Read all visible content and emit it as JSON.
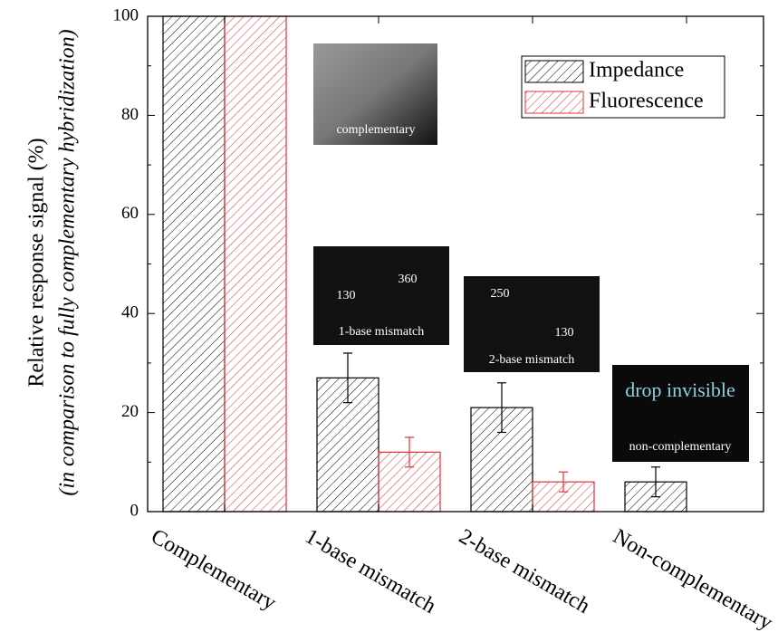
{
  "chart_data": {
    "type": "bar",
    "y_label": "Relative response signal (%)",
    "y_label_note": "(in comparison to fully complementary hybridization)",
    "categories": [
      "Complementary",
      "1-base mismatch",
      "2-base mismatch",
      "Non-complementary"
    ],
    "series": [
      {
        "name": "Impedance",
        "color": "#000000",
        "values": [
          100,
          27,
          21,
          6
        ],
        "errors": [
          0,
          5,
          5,
          3
        ]
      },
      {
        "name": "Fluorescence",
        "color": "#e8303a",
        "values": [
          100,
          12,
          6,
          null
        ],
        "errors": [
          0,
          3,
          2,
          null
        ]
      }
    ],
    "ylim": [
      0,
      100
    ],
    "yticks": [
      0,
      20,
      40,
      60,
      80,
      100
    ],
    "legend": "upper right",
    "insets": [
      {
        "texts": [
          "complementary"
        ]
      },
      {
        "texts": [
          "130",
          "360",
          "1-base mismatch"
        ]
      },
      {
        "texts": [
          "250",
          "130",
          "2-base mismatch"
        ]
      },
      {
        "texts": [
          "drop invisible",
          "non-complementary"
        ]
      }
    ]
  }
}
